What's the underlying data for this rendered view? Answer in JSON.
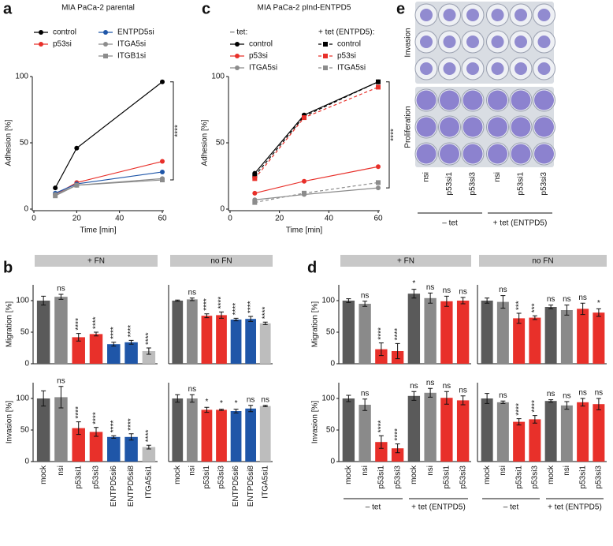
{
  "panel_labels": [
    "a",
    "b",
    "c",
    "d",
    "e"
  ],
  "image_panel": {
    "row_labels": [
      "Invasion",
      "Proliferation"
    ],
    "column_labels": [
      "nsi",
      "p53si1",
      "p53si3",
      "nsi",
      "p53si1",
      "p53si3"
    ],
    "group_labels": [
      "– tet",
      "+ tet (ENTPD5)"
    ]
  },
  "chart_data": [
    {
      "type": "line",
      "title": "MIA PaCa-2 parental",
      "xlabel": "Time [min]",
      "ylabel": "Adhesion [%]",
      "x": [
        10,
        20,
        60
      ],
      "xlim": [
        0,
        60
      ],
      "xticks": [
        0,
        20,
        40,
        60
      ],
      "ylim": [
        0,
        100
      ],
      "yticks": [
        0,
        50,
        100
      ],
      "annotation": "****",
      "series": [
        {
          "name": "control",
          "color": "#000000",
          "marker": "circle",
          "values": [
            16,
            46,
            96
          ]
        },
        {
          "name": "p53si",
          "color": "#e8302a",
          "marker": "circle",
          "values": [
            11,
            20,
            36
          ]
        },
        {
          "name": "ENTPD5si",
          "color": "#1f56a8",
          "marker": "circle",
          "values": [
            12,
            19,
            28
          ]
        },
        {
          "name": "ITGA5si",
          "color": "#8c8c8c",
          "marker": "circle",
          "values": [
            11,
            18,
            23
          ]
        },
        {
          "name": "ITGB1si",
          "color": "#8c8c8c",
          "marker": "square",
          "values": [
            10,
            18,
            22
          ]
        }
      ]
    },
    {
      "type": "line",
      "title": "MIA PaCa-2 pInd-ENTPD5",
      "xlabel": "Time [min]",
      "ylabel": "Adhesion [%]",
      "x": [
        10,
        30,
        60
      ],
      "xlim": [
        0,
        60
      ],
      "xticks": [
        0,
        20,
        40,
        60
      ],
      "ylim": [
        0,
        100
      ],
      "yticks": [
        0,
        50,
        100
      ],
      "annotation": "****",
      "legend_headers": [
        "– tet:",
        "+ tet (ENTPD5):"
      ],
      "series": [
        {
          "name": "control",
          "color": "#000000",
          "marker": "circle",
          "dash": false,
          "values": [
            27,
            71,
            96
          ]
        },
        {
          "name": "p53si",
          "color": "#e8302a",
          "marker": "circle",
          "dash": false,
          "values": [
            12,
            21,
            32
          ]
        },
        {
          "name": "ITGA5si",
          "color": "#8c8c8c",
          "marker": "circle",
          "dash": false,
          "values": [
            7,
            11,
            16
          ]
        },
        {
          "name": "control",
          "color": "#000000",
          "marker": "square",
          "dash": true,
          "values": [
            25,
            70,
            96
          ]
        },
        {
          "name": "p53si",
          "color": "#e8302a",
          "marker": "square",
          "dash": true,
          "values": [
            23,
            69,
            92
          ]
        },
        {
          "name": "ITGA5si",
          "color": "#8c8c8c",
          "marker": "square",
          "dash": true,
          "values": [
            5,
            12,
            20
          ]
        }
      ]
    },
    {
      "type": "bar",
      "header": "+ FN",
      "ylabel": "Migration [%]",
      "ylim": [
        0,
        125
      ],
      "yticks": [
        0,
        50,
        100
      ],
      "values": [
        100,
        106,
        42,
        47,
        31,
        34,
        20
      ],
      "errors": [
        7,
        4,
        6,
        3,
        3,
        3,
        5
      ],
      "colors": [
        "#5a5a5a",
        "#8a8a8a",
        "#e8302a",
        "#e8302a",
        "#1f56a8",
        "#1f56a8",
        "#bdbdbd"
      ],
      "annotations": [
        null,
        "ns",
        "****",
        "****",
        "****",
        "****",
        "****"
      ]
    },
    {
      "type": "bar",
      "header": "no FN",
      "ylim": [
        0,
        125
      ],
      "values": [
        100,
        102,
        76,
        77,
        70,
        71,
        64
      ],
      "errors": [
        1,
        2,
        3,
        5,
        2,
        4,
        2
      ],
      "colors": [
        "#5a5a5a",
        "#8a8a8a",
        "#e8302a",
        "#e8302a",
        "#1f56a8",
        "#1f56a8",
        "#bdbdbd"
      ],
      "annotations": [
        null,
        "ns",
        "****",
        "****",
        "****",
        "****",
        "****"
      ]
    },
    {
      "type": "bar",
      "ylabel": "Invasion [%]",
      "ylim": [
        0,
        125
      ],
      "yticks": [
        0,
        50,
        100
      ],
      "categories": [
        "mock",
        "nsi",
        "p53si1",
        "p53si3",
        "ENTPD5si6",
        "ENTPD5si8",
        "ITGA5si1"
      ],
      "values": [
        100,
        102,
        53,
        47,
        39,
        39,
        23
      ],
      "errors": [
        12,
        17,
        10,
        7,
        2,
        5,
        3
      ],
      "colors": [
        "#5a5a5a",
        "#8a8a8a",
        "#e8302a",
        "#e8302a",
        "#1f56a8",
        "#1f56a8",
        "#bdbdbd"
      ],
      "annotations": [
        null,
        "ns",
        "****",
        "****",
        "****",
        "****",
        "****"
      ]
    },
    {
      "type": "bar",
      "ylim": [
        0,
        125
      ],
      "categories": [
        "mock",
        "nsi",
        "p53si1",
        "p53si3",
        "ENTPD5si6",
        "ENTPD5si8",
        "ITGA5si1"
      ],
      "values": [
        100,
        100,
        82,
        82,
        80,
        84,
        88
      ],
      "errors": [
        6,
        6,
        4,
        1,
        3,
        5,
        1
      ],
      "colors": [
        "#5a5a5a",
        "#8a8a8a",
        "#e8302a",
        "#e8302a",
        "#1f56a8",
        "#1f56a8",
        "#bdbdbd"
      ],
      "annotations": [
        null,
        "ns",
        "*",
        "*",
        "*",
        "ns",
        "ns"
      ]
    },
    {
      "type": "bar",
      "header": "+ FN",
      "ylabel": "Migration [%]",
      "ylim": [
        0,
        125
      ],
      "yticks": [
        0,
        50,
        100
      ],
      "values": [
        100,
        95,
        23,
        20,
        111,
        104,
        99,
        100
      ],
      "errors": [
        3,
        4,
        10,
        12,
        7,
        8,
        8,
        5
      ],
      "colors": [
        "#5a5a5a",
        "#8a8a8a",
        "#e8302a",
        "#e8302a",
        "#5a5a5a",
        "#8a8a8a",
        "#e8302a",
        "#e8302a"
      ],
      "annotations": [
        null,
        "ns",
        "****",
        "****",
        "*",
        "ns",
        "ns",
        "ns"
      ]
    },
    {
      "type": "bar",
      "header": "no FN",
      "ylim": [
        0,
        125
      ],
      "values": [
        100,
        98,
        72,
        73,
        90,
        85,
        87,
        81
      ],
      "errors": [
        4,
        10,
        8,
        3,
        3,
        8,
        9,
        6
      ],
      "colors": [
        "#5a5a5a",
        "#8a8a8a",
        "#e8302a",
        "#e8302a",
        "#5a5a5a",
        "#8a8a8a",
        "#e8302a",
        "#e8302a"
      ],
      "annotations": [
        null,
        "ns",
        "***",
        "***",
        "ns",
        "ns",
        "ns",
        "*"
      ]
    },
    {
      "type": "bar",
      "ylabel": "Invasion [%]",
      "ylim": [
        0,
        125
      ],
      "yticks": [
        0,
        50,
        100
      ],
      "categories": [
        "mock",
        "nsi",
        "p53si1",
        "p53si3",
        "mock",
        "nsi",
        "p53si1",
        "p53si3"
      ],
      "group_labels": [
        "– tet",
        "+ tet (ENTPD5)"
      ],
      "values": [
        100,
        90,
        31,
        21,
        104,
        109,
        101,
        97
      ],
      "errors": [
        5,
        9,
        10,
        7,
        7,
        7,
        10,
        7
      ],
      "colors": [
        "#5a5a5a",
        "#8a8a8a",
        "#e8302a",
        "#e8302a",
        "#5a5a5a",
        "#8a8a8a",
        "#e8302a",
        "#e8302a"
      ],
      "annotations": [
        null,
        "ns",
        "****",
        "****",
        "ns",
        "ns",
        "ns",
        "ns"
      ]
    },
    {
      "type": "bar",
      "ylim": [
        0,
        125
      ],
      "categories": [
        "mock",
        "nsi",
        "p53si1",
        "p53si3",
        "mock",
        "nsi",
        "p53si1",
        "p53si3"
      ],
      "group_labels": [
        "– tet",
        "+ tet (ENTPD5)"
      ],
      "values": [
        100,
        94,
        63,
        67,
        96,
        89,
        94,
        91
      ],
      "errors": [
        8,
        2,
        5,
        6,
        2,
        6,
        6,
        9
      ],
      "colors": [
        "#5a5a5a",
        "#8a8a8a",
        "#e8302a",
        "#e8302a",
        "#5a5a5a",
        "#8a8a8a",
        "#e8302a",
        "#e8302a"
      ],
      "annotations": [
        null,
        "ns",
        "****",
        "****",
        "ns",
        "ns",
        "ns",
        "ns"
      ]
    }
  ]
}
